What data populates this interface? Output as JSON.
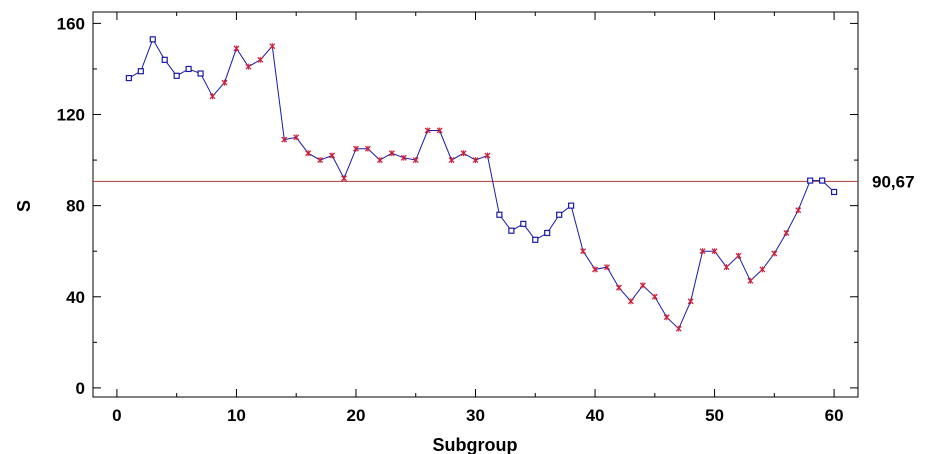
{
  "chart_data": {
    "type": "line",
    "title": "",
    "xlabel": "Subgroup",
    "ylabel": "S",
    "xlim": [
      -2,
      62
    ],
    "ylim": [
      -4,
      165
    ],
    "xticks": [
      0,
      10,
      20,
      30,
      40,
      50,
      60
    ],
    "yticks": [
      0,
      40,
      80,
      120,
      160
    ],
    "center_line": {
      "value": 90.67,
      "label": "90,67",
      "color": "#b03a2e"
    },
    "series": [
      {
        "color": "#1a1aa6",
        "x": [
          1,
          2,
          3,
          4,
          5,
          6,
          7,
          8,
          9,
          10,
          11,
          12,
          13,
          14,
          15,
          16,
          17,
          18,
          19,
          20,
          21,
          22,
          23,
          24,
          25,
          26,
          27,
          28,
          29,
          30,
          31,
          32,
          33,
          34,
          35,
          36,
          37,
          38,
          39,
          40,
          41,
          42,
          43,
          44,
          45,
          46,
          47,
          48,
          49,
          50,
          51,
          52,
          53,
          54,
          55,
          56,
          57,
          58,
          59,
          60
        ],
        "y": [
          136,
          139,
          153,
          144,
          137,
          140,
          138,
          128,
          134,
          149,
          141,
          144,
          150,
          109,
          110,
          103,
          100,
          102,
          92,
          105,
          105,
          100,
          103,
          101,
          100,
          113,
          113,
          100,
          103,
          100,
          102,
          76,
          69,
          72,
          65,
          68,
          76,
          80,
          60,
          52,
          53,
          44,
          38,
          45,
          40,
          31,
          26,
          38,
          60,
          60,
          53,
          58,
          47,
          52,
          59,
          68,
          78,
          91,
          91,
          86
        ],
        "markers": [
          "sq",
          "sq",
          "sq",
          "sq",
          "sq",
          "sq",
          "sq",
          "x",
          "x",
          "x",
          "x",
          "x",
          "x",
          "x",
          "x",
          "x",
          "x",
          "x",
          "x",
          "x",
          "x",
          "x",
          "x",
          "x",
          "x",
          "x",
          "x",
          "x",
          "x",
          "x",
          "x",
          "sq",
          "sq",
          "sq",
          "sq",
          "sq",
          "sq",
          "sq",
          "x",
          "x",
          "x",
          "x",
          "x",
          "x",
          "x",
          "x",
          "x",
          "x",
          "x",
          "x",
          "x",
          "x",
          "x",
          "x",
          "x",
          "x",
          "x",
          "sq",
          "sq",
          "sq"
        ],
        "marker_colors": {
          "sq": "#1a1aa6",
          "x": "#cc1f3a"
        }
      }
    ]
  }
}
